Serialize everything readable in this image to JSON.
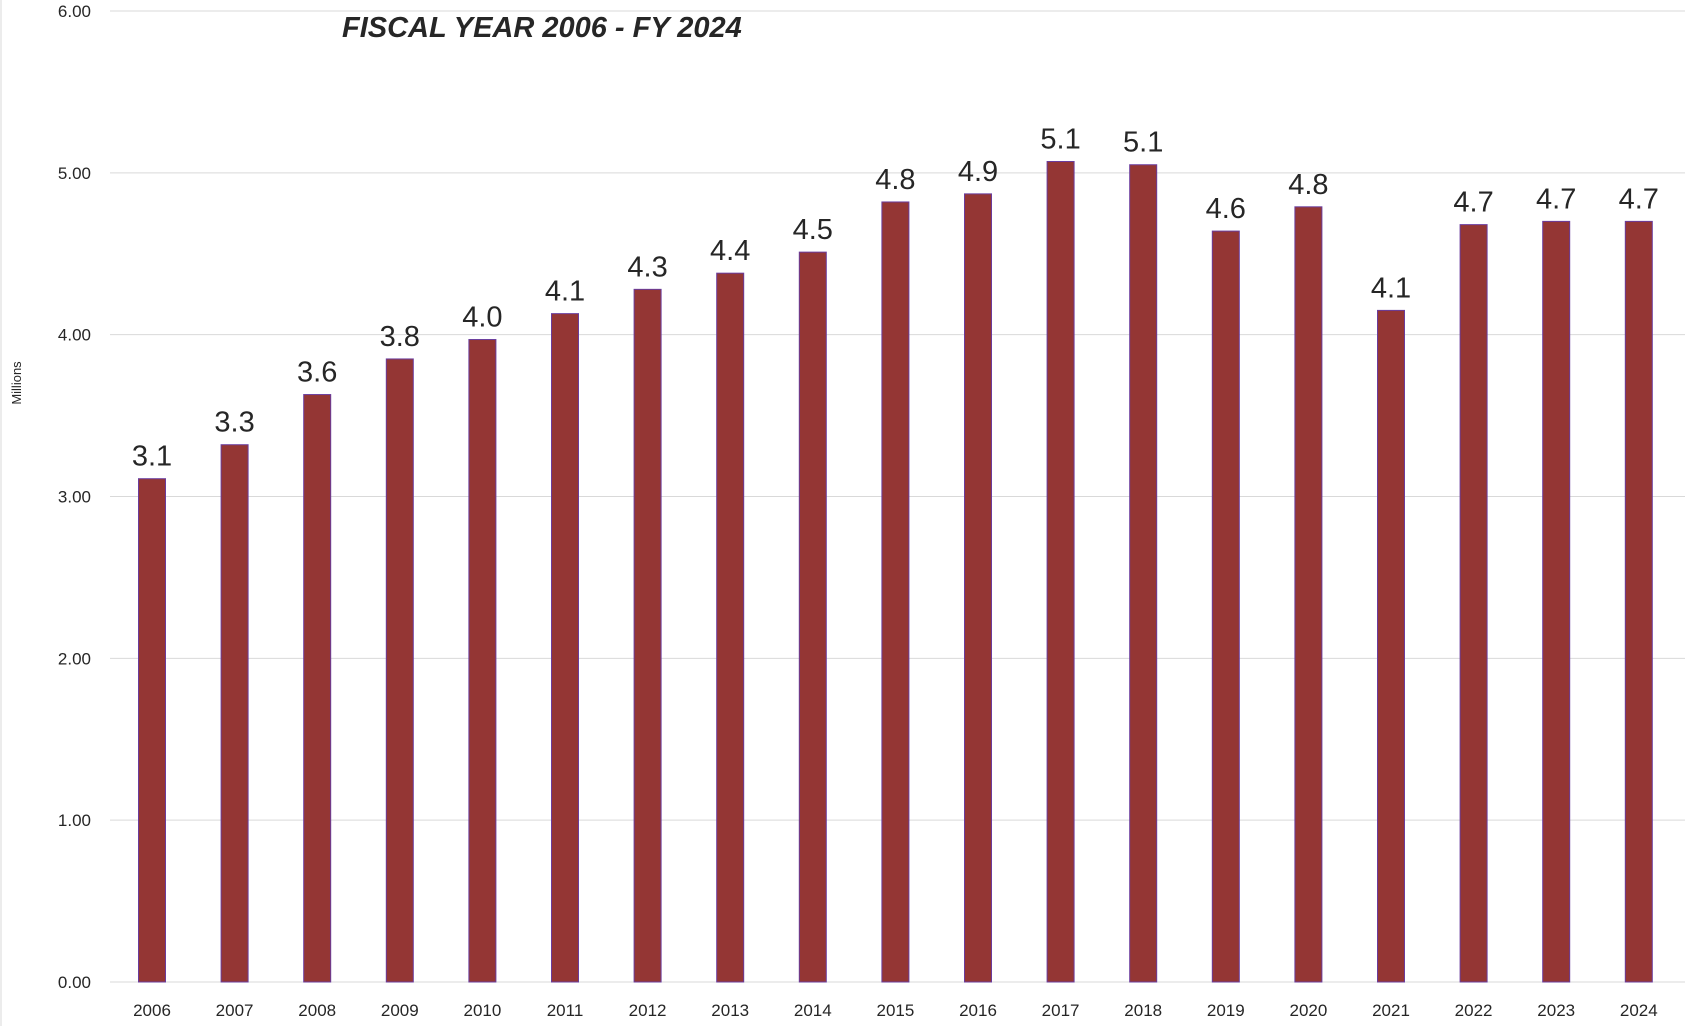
{
  "chart_data": {
    "type": "bar",
    "title": "FISCAL YEAR 2006 - FY 2024",
    "xlabel": "",
    "ylabel": "Millions",
    "ylim": [
      0,
      6
    ],
    "y_ticks": [
      "0.00",
      "1.00",
      "2.00",
      "3.00",
      "4.00",
      "5.00",
      "6.00"
    ],
    "categories": [
      "2006",
      "2007",
      "2008",
      "2009",
      "2010",
      "2011",
      "2012",
      "2013",
      "2014",
      "2015",
      "2016",
      "2017",
      "2018",
      "2019",
      "2020",
      "2021",
      "2022",
      "2023",
      "2024"
    ],
    "values": [
      3.11,
      3.32,
      3.63,
      3.85,
      3.97,
      4.13,
      4.28,
      4.38,
      4.51,
      4.82,
      4.87,
      5.07,
      5.05,
      4.64,
      4.79,
      4.15,
      4.68,
      4.7,
      4.7
    ],
    "data_labels": [
      "3.1",
      "3.3",
      "3.6",
      "3.8",
      "4.0",
      "4.1",
      "4.3",
      "4.4",
      "4.5",
      "4.8",
      "4.9",
      "5.1",
      "5.1",
      "4.6",
      "4.8",
      "4.1",
      "4.7",
      "4.7",
      "4.7"
    ],
    "bar_color": "#943634",
    "grid": true,
    "legend": "none"
  }
}
